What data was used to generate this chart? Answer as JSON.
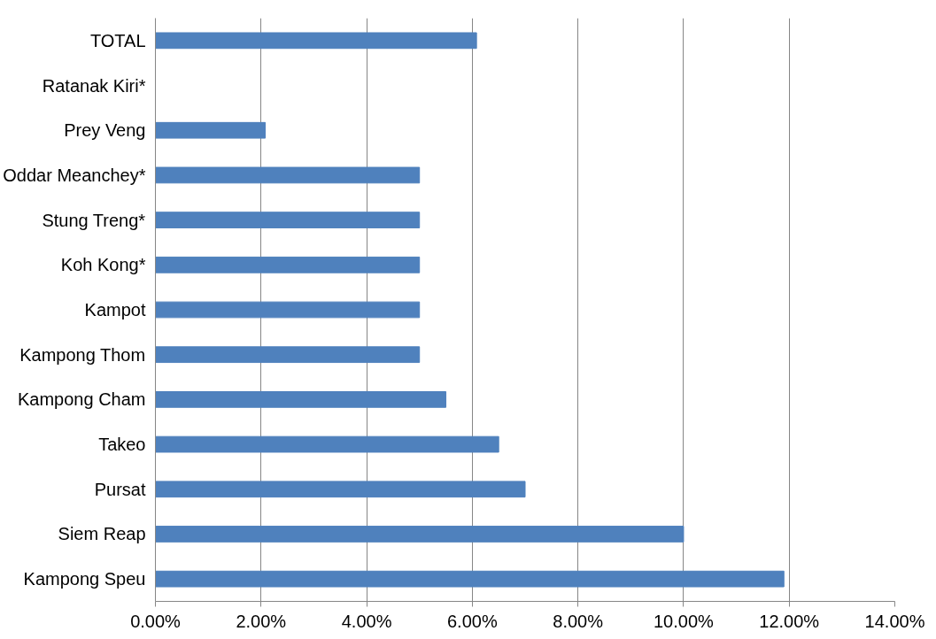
{
  "chart_data": {
    "type": "bar",
    "orientation": "horizontal",
    "categories": [
      "TOTAL",
      "Ratanak Kiri*",
      "Prey Veng",
      "Oddar Meanchey*",
      "Stung Treng*",
      "Koh Kong*",
      "Kampot",
      "Kampong Thom",
      "Kampong Cham",
      "Takeo",
      "Pursat",
      "Siem Reap",
      "Kampong Speu"
    ],
    "values": [
      6.08,
      0,
      2.08,
      5.0,
      5.0,
      5.0,
      5.0,
      5.0,
      5.5,
      6.5,
      7.0,
      10.0,
      11.9
    ],
    "color": "#4f81bd",
    "xlim": [
      0,
      14
    ],
    "xticks": [
      {
        "value": 0,
        "label": "0.00%"
      },
      {
        "value": 2,
        "label": "2.00%"
      },
      {
        "value": 4,
        "label": "4.00%"
      },
      {
        "value": 6,
        "label": "6.00%"
      },
      {
        "value": 8,
        "label": "8.00%"
      },
      {
        "value": 10,
        "label": "10.00%"
      },
      {
        "value": 12,
        "label": "12.00%"
      },
      {
        "value": 14,
        "label": "14.00%"
      }
    ],
    "grid": "x"
  }
}
